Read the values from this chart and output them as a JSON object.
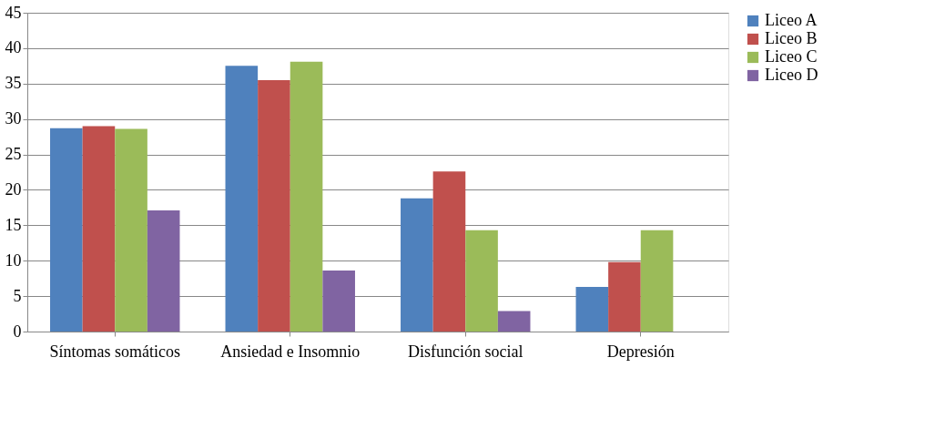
{
  "chart_data": {
    "type": "bar",
    "categories": [
      "Síntomas somáticos",
      "Ansiedad e Insomnio",
      "Disfunción social",
      "Depresión"
    ],
    "series": [
      {
        "name": "Liceo A",
        "color": "#4f81bd",
        "values": [
          28.7,
          37.5,
          18.8,
          6.3
        ]
      },
      {
        "name": "Liceo B",
        "color": "#c0504d",
        "values": [
          29.0,
          35.5,
          22.6,
          9.8
        ]
      },
      {
        "name": "Liceo C",
        "color": "#9bbb59",
        "values": [
          28.6,
          38.1,
          14.3,
          14.3
        ]
      },
      {
        "name": "Liceo D",
        "color": "#8064a2",
        "values": [
          17.1,
          8.6,
          2.9,
          null
        ]
      }
    ],
    "ylim": [
      0,
      45
    ],
    "yticks": [
      0,
      5,
      10,
      15,
      20,
      25,
      30,
      35,
      40,
      45
    ],
    "grid": "y",
    "legend": "right"
  }
}
